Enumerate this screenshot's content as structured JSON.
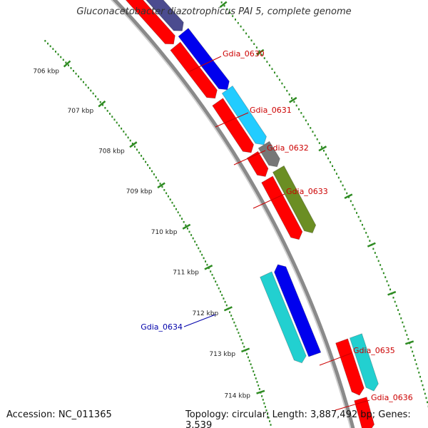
{
  "title": "Gluconacetobacter diazotrophicus PAI 5, complete genome",
  "footer": {
    "accession": "Accession: NC_011365",
    "topology": "Topology: circular; Length: 3,887,492 bp; Genes: 3,539"
  },
  "ticks": [
    {
      "label": "706 kbp"
    },
    {
      "label": "707 kbp"
    },
    {
      "label": "708 kbp"
    },
    {
      "label": "709 kbp"
    },
    {
      "label": "710 kbp"
    },
    {
      "label": "711 kbp"
    },
    {
      "label": "712 kbp"
    },
    {
      "label": "713 kbp"
    },
    {
      "label": "714 kbp"
    }
  ],
  "gene_labels": [
    {
      "name": "Gdia_0630",
      "color": "#cc0000"
    },
    {
      "name": "Gdia_0631",
      "color": "#cc0000"
    },
    {
      "name": "Gdia_0632",
      "color": "#cc0000"
    },
    {
      "name": "Gdia_0633",
      "color": "#cc0000"
    },
    {
      "name": "Gdia_0634",
      "color": "#0000aa"
    },
    {
      "name": "Gdia_0635",
      "color": "#cc0000"
    },
    {
      "name": "Gdia_0636",
      "color": "#cc0000"
    }
  ],
  "colors": {
    "red": "#ff0000",
    "blue": "#0000ee",
    "light_blue": "#22ccff",
    "gray": "#777777",
    "olive": "#6b8e23",
    "cyan": "#22d0d0",
    "slate": "#4b4b8f",
    "backbone": "#8a8a8a",
    "ticks": "#2e8b22"
  }
}
